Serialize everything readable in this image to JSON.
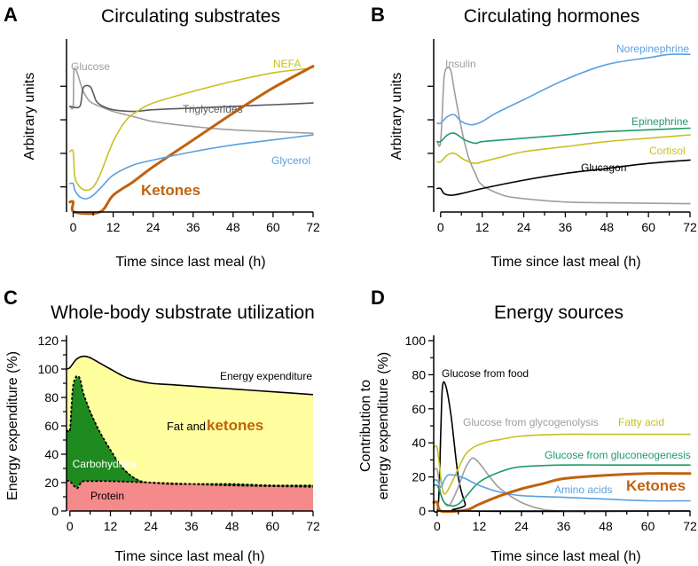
{
  "colors": {
    "glucose": "#9e9e9e",
    "nefa": "#c9c020",
    "triglycerides": "#5a5a5a",
    "ketones": "#c0620f",
    "glycerol": "#5aa0e0",
    "norepinephrine": "#5aa0e0",
    "insulin": "#9e9e9e",
    "epinephrine": "#1f9a6a",
    "cortisol": "#c9c020",
    "glucagon": "#000000",
    "fat": "#ffffa0",
    "carb": "#1f8a1f",
    "protein": "#f48a8a"
  },
  "chart_data": [
    {
      "panel": "A",
      "type": "line",
      "title": "Circulating substrates",
      "xlabel": "Time since last meal (h)",
      "ylabel": "Arbitrary units",
      "xticks": [
        "0",
        "12",
        "24",
        "36",
        "48",
        "60",
        "72"
      ],
      "xlim": [
        -2,
        72
      ],
      "ylim": [
        0,
        10
      ],
      "series": [
        {
          "name": "Glucose",
          "label": "Glucose",
          "x": [
            -1,
            0,
            0.2,
            1,
            2,
            3,
            5,
            8,
            12,
            18,
            24,
            36,
            48,
            72
          ],
          "y": [
            6.3,
            6.3,
            8.4,
            8.4,
            7.8,
            7.2,
            6.6,
            6.3,
            6.0,
            5.7,
            5.4,
            5.1,
            4.9,
            4.7
          ]
        },
        {
          "name": "Triglycerides",
          "label": "Triglycerides",
          "x": [
            -1,
            2,
            3,
            5,
            6,
            7,
            9,
            12,
            18,
            24,
            36,
            48,
            60,
            72
          ],
          "y": [
            6.3,
            6.3,
            7.4,
            7.5,
            7.1,
            6.6,
            6.3,
            6.1,
            6.0,
            6.1,
            6.2,
            6.3,
            6.4,
            6.5
          ]
        },
        {
          "name": "NEFA",
          "label": "NEFA",
          "x": [
            -1,
            0,
            0.5,
            2,
            4,
            6,
            8,
            12,
            16,
            20,
            24,
            36,
            48,
            60,
            72
          ],
          "y": [
            3.6,
            3.6,
            2.1,
            1.5,
            1.3,
            1.5,
            2.2,
            4.2,
            5.5,
            6.1,
            6.5,
            7.2,
            7.8,
            8.3,
            8.6
          ]
        },
        {
          "name": "Ketones",
          "label": "Ketones",
          "x": [
            -1,
            0,
            0.3,
            8,
            12,
            18,
            24,
            36,
            48,
            60,
            72
          ],
          "y": [
            0.6,
            0.6,
            0,
            0,
            1.0,
            1.8,
            2.7,
            4.3,
            5.9,
            7.4,
            8.7
          ]
        },
        {
          "name": "Glycerol",
          "label": "Glycerol",
          "x": [
            -1,
            0,
            0.5,
            2,
            4,
            6,
            9,
            12,
            18,
            24,
            36,
            48,
            60,
            72
          ],
          "y": [
            1.7,
            1.7,
            1.3,
            0.9,
            0.8,
            1.0,
            1.6,
            2.2,
            2.8,
            3.1,
            3.6,
            4.0,
            4.3,
            4.6
          ]
        }
      ],
      "annotations": [
        "Glucose",
        "NEFA",
        "Triglycerides",
        "Glycerol",
        "Ketones"
      ]
    },
    {
      "panel": "B",
      "type": "line",
      "title": "Circulating hormones",
      "xlabel": "Time since last meal (h)",
      "ylabel": "Arbitrary units",
      "xticks": [
        "0",
        "12",
        "24",
        "36",
        "48",
        "60",
        "72"
      ],
      "xlim": [
        -2,
        72
      ],
      "ylim": [
        0,
        10
      ],
      "series": [
        {
          "name": "Norepinephrine",
          "label": "Norepinephrine",
          "x": [
            -1,
            0,
            2,
            4,
            6,
            9,
            12,
            16,
            24,
            36,
            48,
            60,
            66,
            72
          ],
          "y": [
            5.3,
            5.3,
            5.7,
            5.8,
            5.4,
            5.2,
            5.4,
            5.9,
            6.7,
            7.9,
            8.8,
            9.2,
            9.4,
            9.4
          ]
        },
        {
          "name": "Insulin",
          "label": "Insulin",
          "x": [
            -1,
            0,
            1,
            2,
            3,
            4,
            6,
            8,
            10,
            12,
            18,
            24,
            36,
            48,
            72
          ],
          "y": [
            4.2,
            4.2,
            8.0,
            8.6,
            8.4,
            7.2,
            5.0,
            3.3,
            2.3,
            1.6,
            1.0,
            0.8,
            0.6,
            0.55,
            0.5
          ]
        },
        {
          "name": "Epinephrine",
          "label": "Epinephrine",
          "x": [
            -1,
            0,
            2,
            4,
            7,
            10,
            12,
            18,
            24,
            36,
            48,
            72
          ],
          "y": [
            4.2,
            4.2,
            4.6,
            4.7,
            4.3,
            4.1,
            4.2,
            4.3,
            4.4,
            4.6,
            4.8,
            5.0
          ]
        },
        {
          "name": "Cortisol",
          "label": "Cortisol",
          "x": [
            -1,
            0,
            2,
            4,
            7,
            10,
            12,
            18,
            24,
            36,
            48,
            60,
            72
          ],
          "y": [
            3.0,
            3.0,
            3.4,
            3.5,
            3.1,
            2.9,
            3.0,
            3.3,
            3.6,
            3.9,
            4.2,
            4.4,
            4.6
          ]
        },
        {
          "name": "Glucagon",
          "label": "Glucagon",
          "x": [
            -1,
            0,
            1,
            3,
            6,
            12,
            24,
            36,
            48,
            60,
            72
          ],
          "y": [
            1.4,
            1.4,
            1.1,
            1.0,
            1.1,
            1.4,
            1.9,
            2.3,
            2.6,
            2.9,
            3.1
          ]
        }
      ],
      "annotations": [
        "Norepinephrine",
        "Insulin",
        "Epinephrine",
        "Cortisol",
        "Glucagon"
      ]
    },
    {
      "panel": "C",
      "type": "area",
      "title": "Whole-body substrate utilization",
      "xlabel": "Time since last meal (h)",
      "ylabel": "Energy expenditure (%)",
      "xticks": [
        "0",
        "12",
        "24",
        "36",
        "48",
        "60",
        "72"
      ],
      "yticks": [
        "0",
        "20",
        "40",
        "60",
        "80",
        "100",
        "120"
      ],
      "xlim": [
        -1,
        72
      ],
      "ylim": [
        0,
        120
      ],
      "series": [
        {
          "name": "Energy expenditure",
          "x": [
            -1,
            0,
            2,
            4,
            6,
            9,
            12,
            15,
            18,
            24,
            30,
            36,
            48,
            60,
            72
          ],
          "y": [
            100,
            101,
            107,
            109,
            108,
            104,
            100,
            96,
            93,
            90,
            89,
            88,
            86,
            84,
            82
          ]
        },
        {
          "name": "Carbohydrate upper",
          "x": [
            -1,
            0,
            0.5,
            1,
            2,
            3,
            4,
            6,
            9,
            12,
            15,
            18,
            21,
            24,
            30,
            36,
            48,
            60,
            72
          ],
          "y": [
            57,
            57,
            75,
            89,
            95,
            93,
            83,
            70,
            55,
            43,
            32,
            25,
            21,
            20,
            19,
            19,
            19,
            18,
            18
          ]
        },
        {
          "name": "Protein",
          "x": [
            -1,
            0,
            2,
            3,
            4,
            6,
            12,
            24,
            36,
            48,
            72
          ],
          "y": [
            21,
            21,
            16,
            19,
            21,
            21,
            21,
            20,
            19,
            18,
            17
          ]
        }
      ],
      "labels": {
        "energy": "Energy expenditure",
        "fat": "Fat and",
        "ketones": "ketones",
        "carb": "Carbohydrate",
        "protein": "Protein"
      }
    },
    {
      "panel": "D",
      "type": "line",
      "title": "Energy sources",
      "xlabel": "Time since last meal (h)",
      "ylabel_line1": "Contribution to",
      "ylabel_line2": "energy expenditure (%)",
      "xticks": [
        "0",
        "12",
        "24",
        "36",
        "48",
        "60",
        "72"
      ],
      "yticks": [
        "0",
        "20",
        "40",
        "60",
        "80",
        "100"
      ],
      "xlim": [
        -1,
        72
      ],
      "ylim": [
        0,
        100
      ],
      "series": [
        {
          "name": "Glucose from food",
          "label": "Glucose from food",
          "x": [
            -1,
            0,
            0.5,
            1,
            1.5,
            2.5,
            4,
            6,
            8,
            9,
            72
          ],
          "y": [
            0,
            0,
            10,
            45,
            73,
            73,
            55,
            20,
            4,
            0,
            0
          ]
        },
        {
          "name": "Glucose from glycogenolysis",
          "label": "Glucose from glycogenolysis",
          "x": [
            -1,
            0,
            1,
            2,
            3,
            4,
            6,
            8,
            10,
            12,
            15,
            18,
            24,
            30,
            36,
            40,
            72
          ],
          "y": [
            24,
            24,
            10,
            5,
            3,
            5,
            14,
            25,
            31,
            28,
            20,
            13,
            5,
            1,
            0,
            0,
            0
          ]
        },
        {
          "name": "Fatty acid",
          "label": "Fatty acid",
          "x": [
            -1,
            0,
            1,
            2,
            4,
            6,
            8,
            10,
            12,
            15,
            18,
            24,
            36,
            48,
            60,
            72
          ],
          "y": [
            37,
            37,
            20,
            10,
            16,
            25,
            33,
            37,
            39,
            41,
            42,
            44,
            45,
            45,
            45,
            45
          ]
        },
        {
          "name": "Glucose from gluconeogenesis",
          "label": "Glucose from gluconeogenesis",
          "x": [
            -1,
            0,
            1,
            2,
            4,
            6,
            8,
            12,
            18,
            24,
            36,
            48,
            60,
            72
          ],
          "y": [
            15,
            15,
            10,
            5,
            3,
            4,
            8,
            17,
            23,
            26,
            27,
            27,
            27,
            27
          ]
        },
        {
          "name": "Amino acids",
          "label": "Amino acids",
          "x": [
            -1,
            0,
            1,
            2,
            3,
            5,
            8,
            12,
            18,
            24,
            36,
            48,
            60,
            72
          ],
          "y": [
            18,
            18,
            14,
            18,
            21,
            21,
            19,
            15,
            11,
            9,
            8,
            7,
            6,
            6
          ]
        },
        {
          "name": "Ketones",
          "label": "Ketones",
          "x": [
            -1,
            0,
            1,
            6,
            9,
            12,
            18,
            24,
            30,
            36,
            48,
            60,
            72
          ],
          "y": [
            5,
            5,
            0,
            0,
            1,
            4,
            9,
            13,
            16,
            19,
            21,
            22,
            22
          ]
        }
      ]
    }
  ],
  "panels": {
    "A": "A",
    "B": "B",
    "C": "C",
    "D": "D"
  }
}
